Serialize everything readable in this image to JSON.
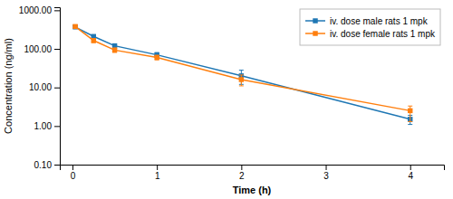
{
  "chart_data": {
    "type": "line",
    "x": [
      0.033,
      0.25,
      0.5,
      1.0,
      2.0,
      4.0
    ],
    "series": [
      {
        "name": "iv. dose male rats 1 mpk",
        "values": [
          370,
          210,
          120,
          70,
          20,
          1.5
        ],
        "error_low": [
          30,
          20,
          15,
          10,
          8,
          0.4
        ],
        "error_high": [
          30,
          20,
          15,
          10,
          8,
          0.4
        ]
      },
      {
        "name": "iv. dose female rats 1 mpk",
        "values": [
          380,
          165,
          93,
          60,
          16,
          2.5
        ],
        "error_low": [
          30,
          20,
          12,
          8,
          5,
          1.2
        ],
        "error_high": [
          30,
          20,
          12,
          8,
          5,
          0.8
        ]
      }
    ],
    "marker": "square",
    "xlabel": "Time (h)",
    "ylabel": "Concentration (ng/ml)",
    "xlim": [
      -0.15,
      4.4
    ],
    "ylim": [
      0.1,
      1200
    ],
    "xticks": [
      0,
      1,
      2,
      3,
      4
    ],
    "yticks": [
      {
        "value": 0.1,
        "label": "0.10"
      },
      {
        "value": 1,
        "label": "1.00"
      },
      {
        "value": 10,
        "label": "10.00"
      },
      {
        "value": 100,
        "label": "100.00"
      },
      {
        "value": 1000,
        "label": "1000.00"
      }
    ],
    "log": "y",
    "grid": false,
    "legend": "upper right"
  }
}
